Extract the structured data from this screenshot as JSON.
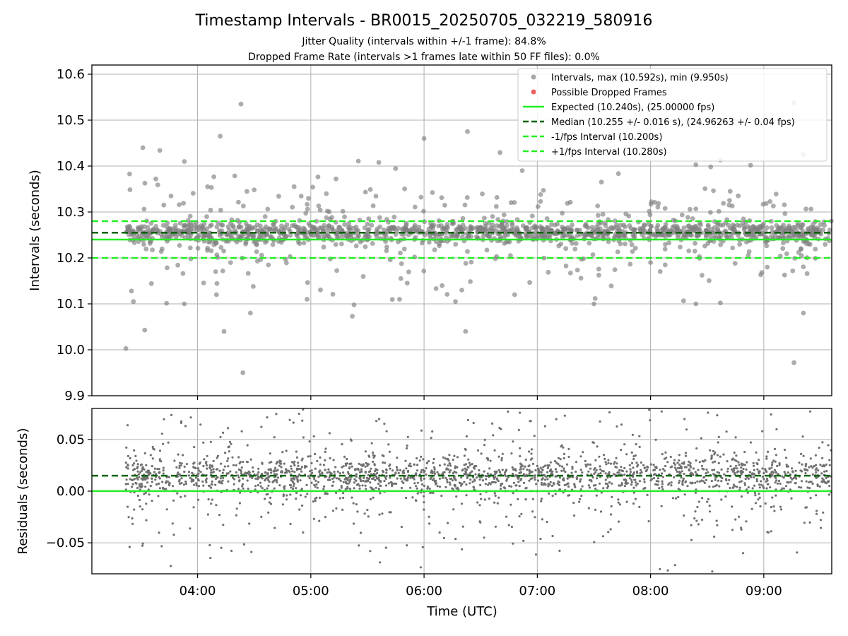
{
  "chart_data": [
    {
      "type": "scatter",
      "title": "Timestamp Intervals - BR0015_20250705_032219_580916",
      "subtitles": [
        "Jitter Quality (intervals within +/-1 frame): 84.8%",
        "Dropped Frame Rate (intervals >1 frames late within 50 FF files): 0.0%"
      ],
      "xlabel": "",
      "ylabel": "Intervals (seconds)",
      "xlim": [
        "03:04",
        "09:36"
      ],
      "ylim": [
        9.9,
        10.62
      ],
      "yticks": [
        "9.9",
        "10.0",
        "10.1",
        "10.2",
        "10.3",
        "10.4",
        "10.5",
        "10.6"
      ],
      "grid": true,
      "legend_position": "top-right",
      "series": [
        {
          "name": "Intervals, max (10.592s), min (9.950s)",
          "kind": "points",
          "color": "#808080",
          "x_range": [
            "03:22",
            "09:36"
          ],
          "center": 10.255,
          "min": 9.95,
          "max": 10.592,
          "points": [
            [
              "03:22",
              10.003
            ],
            [
              "03:24",
              10.383
            ],
            [
              "03:25",
              10.128
            ],
            [
              "03:26",
              10.105
            ],
            [
              "03:31",
              10.44
            ],
            [
              "03:32",
              10.043
            ],
            [
              "03:40",
              10.434
            ],
            [
              "03:53",
              10.1
            ],
            [
              "03:53",
              10.41
            ],
            [
              "04:10",
              10.12
            ],
            [
              "04:12",
              10.465
            ],
            [
              "04:14",
              10.04
            ],
            [
              "04:23",
              10.535
            ],
            [
              "04:24",
              9.95
            ],
            [
              "04:28",
              10.08
            ],
            [
              "04:58",
              10.11
            ],
            [
              "05:22",
              10.073
            ],
            [
              "05:36",
              10.408
            ],
            [
              "05:47",
              10.11
            ],
            [
              "06:00",
              10.46
            ],
            [
              "06:20",
              10.13
            ],
            [
              "06:22",
              10.04
            ],
            [
              "06:23",
              10.475
            ],
            [
              "06:48",
              10.12
            ],
            [
              "06:52",
              10.39
            ],
            [
              "07:30",
              10.1
            ],
            [
              "07:34",
              10.365
            ],
            [
              "08:00",
              10.19
            ],
            [
              "08:24",
              10.1
            ],
            [
              "08:24",
              10.403
            ],
            [
              "08:37",
              10.102
            ],
            [
              "08:37",
              10.413
            ],
            [
              "09:16",
              9.972
            ],
            [
              "09:16",
              10.538
            ],
            [
              "09:21",
              10.08
            ],
            [
              "09:21",
              10.425
            ]
          ]
        },
        {
          "name": "Possible Dropped Frames",
          "kind": "points",
          "color": "#f06060",
          "points": []
        },
        {
          "name": "Expected (10.240s), (25.00000 fps)",
          "kind": "hline",
          "y": 10.24,
          "color": "#22ee22",
          "dash": "solid"
        },
        {
          "name": "Median (10.255 +/- 0.016 s), (24.96263 +/- 0.04 fps)",
          "kind": "hline",
          "y": 10.255,
          "color": "#006400",
          "dash": "dashed"
        },
        {
          "name": "-1/fps Interval (10.200s)",
          "kind": "hline",
          "y": 10.2,
          "color": "#22ee22",
          "dash": "dashed"
        },
        {
          "name": "+1/fps Interval (10.280s)",
          "kind": "hline",
          "y": 10.28,
          "color": "#22ee22",
          "dash": "dashed"
        }
      ]
    },
    {
      "type": "scatter",
      "xlabel": "Time (UTC)",
      "ylabel": "Residuals (seconds)",
      "xlim": [
        "03:04",
        "09:36"
      ],
      "ylim": [
        -0.08,
        0.08
      ],
      "xticks": [
        "04:00",
        "05:00",
        "06:00",
        "07:00",
        "08:00",
        "09:00"
      ],
      "yticks": [
        "−0.05",
        "0.00",
        "0.05"
      ],
      "grid": true,
      "series": [
        {
          "kind": "points",
          "color": "#707070",
          "x_range": [
            "03:22",
            "09:36"
          ],
          "center": 0.015
        },
        {
          "kind": "hline",
          "y": 0.0,
          "color": "#22ee22",
          "dash": "solid"
        },
        {
          "kind": "hline",
          "y": 0.015,
          "color": "#006400",
          "dash": "dashed"
        }
      ]
    }
  ]
}
